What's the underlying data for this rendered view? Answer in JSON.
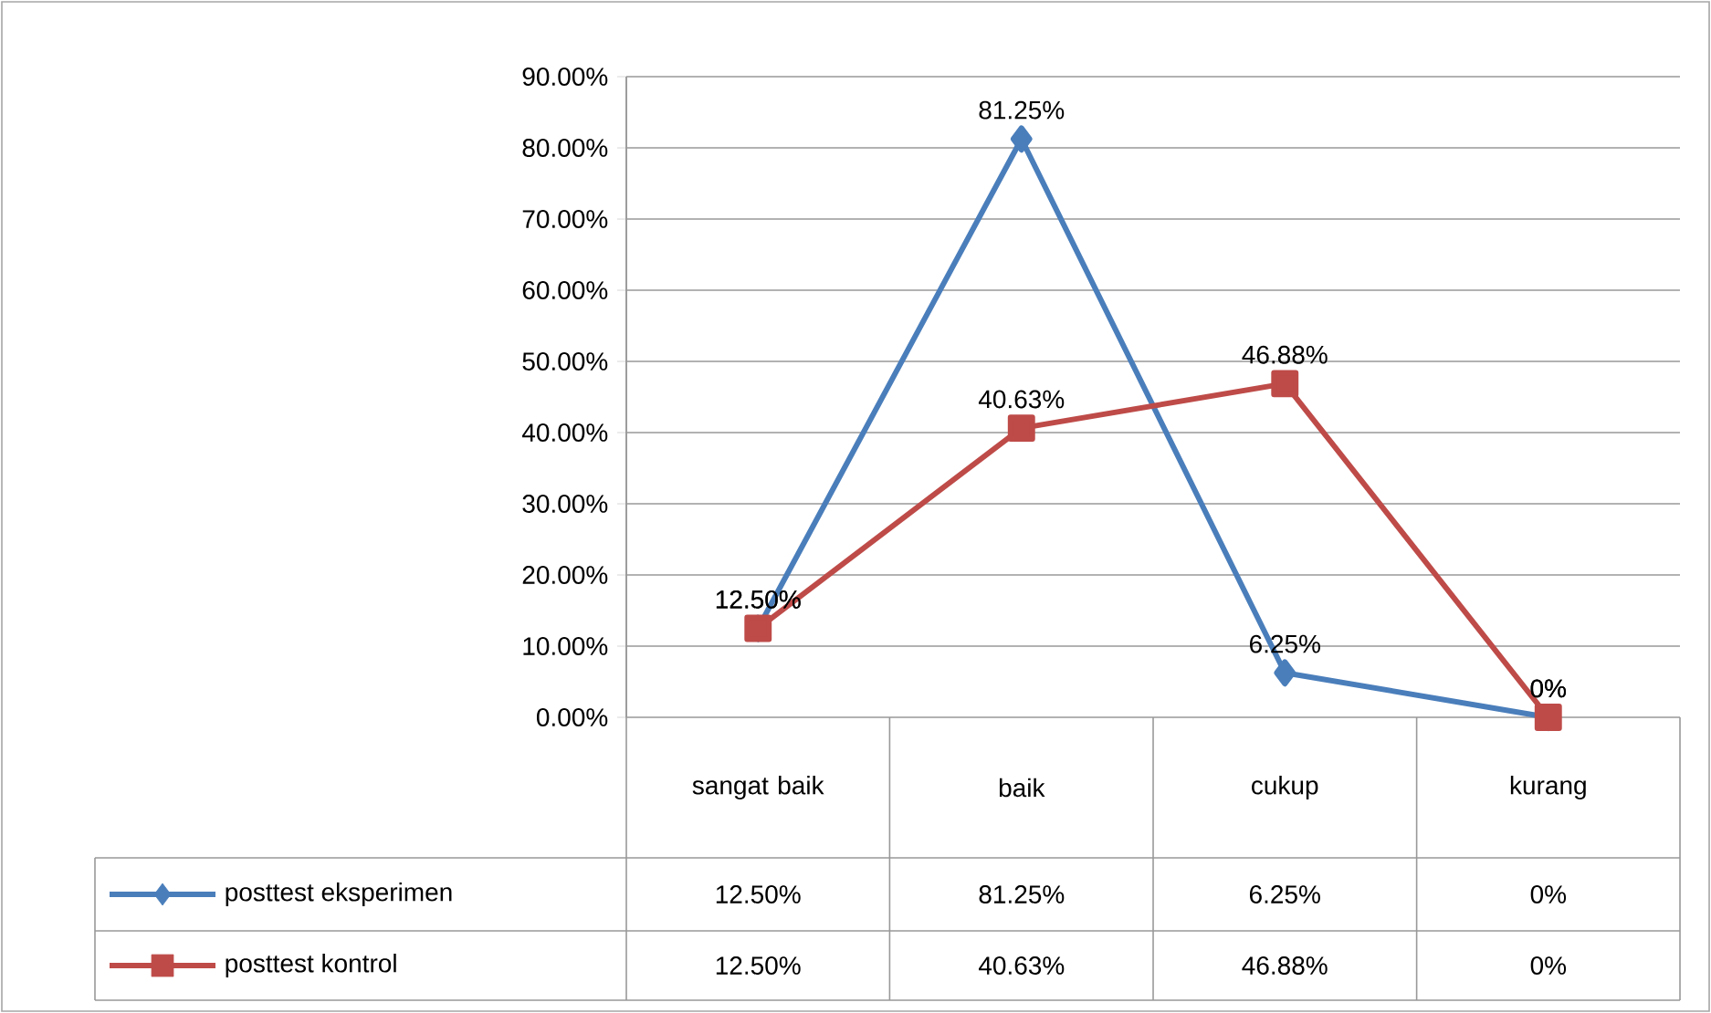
{
  "chart_data": {
    "type": "line",
    "categories": [
      "sangat baik",
      "baik",
      "cukup",
      "kurang"
    ],
    "series": [
      {
        "name": "posttest eksperimen",
        "color": "#4a7ebb",
        "marker": "diamond",
        "values": [
          12.5,
          81.25,
          6.25,
          0
        ],
        "value_labels": [
          "12.50%",
          "81.25%",
          "6.25%",
          "0%"
        ]
      },
      {
        "name": "posttest kontrol",
        "color": "#be4b48",
        "marker": "square",
        "values": [
          12.5,
          40.63,
          46.88,
          0
        ],
        "value_labels": [
          "12.50%",
          "40.63%",
          "46.88%",
          "0%"
        ]
      }
    ],
    "ylim": [
      0,
      90
    ],
    "yticks": [
      {
        "value": 0,
        "label": "0.00%"
      },
      {
        "value": 10,
        "label": "10.00%"
      },
      {
        "value": 20,
        "label": "20.00%"
      },
      {
        "value": 30,
        "label": "30.00%"
      },
      {
        "value": 40,
        "label": "40.00%"
      },
      {
        "value": 50,
        "label": "50.00%"
      },
      {
        "value": 60,
        "label": "60.00%"
      },
      {
        "value": 70,
        "label": "70.00%"
      },
      {
        "value": 80,
        "label": "80.00%"
      },
      {
        "value": 90,
        "label": "90.00%"
      }
    ],
    "grid": "y",
    "legend": "bottom",
    "line_style": "solid"
  }
}
